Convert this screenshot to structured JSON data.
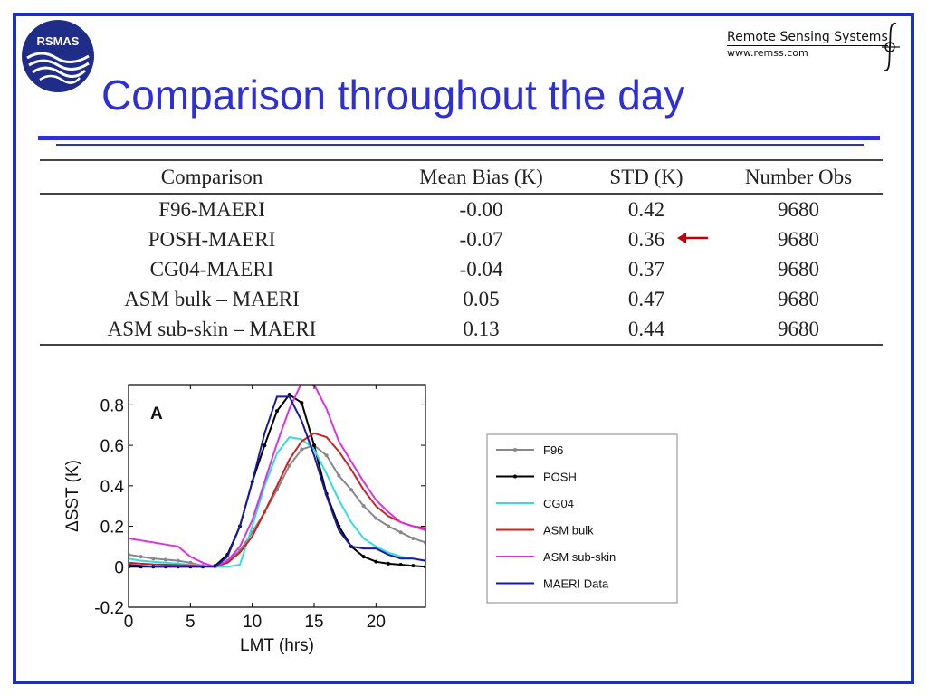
{
  "logo": {
    "text": "RSMAS",
    "icon": "rsmas-wave-logo"
  },
  "org": {
    "name": "Remote Sensing Systems",
    "url": "www.remss.com",
    "icon": "integral-mark-icon"
  },
  "title": "Comparison throughout the day",
  "table": {
    "headers": [
      "Comparison",
      "Mean Bias (K)",
      "STD (K)",
      "Number Obs"
    ],
    "rows": [
      [
        "F96-MAERI",
        "-0.00",
        "0.42",
        "9680"
      ],
      [
        "POSH-MAERI",
        "-0.07",
        "0.36",
        "9680"
      ],
      [
        "CG04-MAERI",
        "-0.04",
        "0.37",
        "9680"
      ],
      [
        "ASM bulk – MAERI",
        "0.05",
        "0.47",
        "9680"
      ],
      [
        "ASM sub-skin – MAERI",
        "0.13",
        "0.44",
        "9680"
      ]
    ],
    "highlight": {
      "row": 1,
      "icon": "left-arrow-icon",
      "color": "#c00000"
    }
  },
  "chart_data": {
    "type": "line",
    "panel_label": "A",
    "xlabel": "LMT (hrs)",
    "ylabel": "ΔSST (K)",
    "xlim": [
      0,
      24
    ],
    "ylim": [
      -0.2,
      0.9
    ],
    "xticks": [
      0,
      5,
      10,
      15,
      20
    ],
    "yticks": [
      -0.2,
      0,
      0.2,
      0.4,
      0.6,
      0.8
    ],
    "grid": false,
    "legend_position": "right-outside",
    "series": [
      {
        "name": "F96",
        "color": "#888888",
        "markers": true,
        "x": [
          0,
          1,
          2,
          3,
          4,
          5,
          6,
          7,
          8,
          9,
          10,
          11,
          12,
          13,
          14,
          15,
          16,
          17,
          18,
          19,
          20,
          21,
          22,
          23,
          24
        ],
        "y": [
          0.06,
          0.05,
          0.04,
          0.035,
          0.03,
          0.02,
          0.005,
          0.0,
          0.03,
          0.08,
          0.17,
          0.27,
          0.38,
          0.5,
          0.58,
          0.6,
          0.55,
          0.45,
          0.38,
          0.3,
          0.24,
          0.2,
          0.17,
          0.14,
          0.12
        ]
      },
      {
        "name": "POSH",
        "color": "#000000",
        "markers": true,
        "x": [
          0,
          1,
          2,
          3,
          4,
          5,
          6,
          7,
          8,
          9,
          10,
          11,
          12,
          13,
          14,
          15,
          16,
          17,
          18,
          19,
          20,
          21,
          22,
          23,
          24
        ],
        "y": [
          0.0,
          0.0,
          0.0,
          0.0,
          0.0,
          0.0,
          0.0,
          0.005,
          0.06,
          0.2,
          0.42,
          0.6,
          0.77,
          0.85,
          0.81,
          0.6,
          0.36,
          0.2,
          0.1,
          0.05,
          0.025,
          0.015,
          0.01,
          0.005,
          0.0
        ]
      },
      {
        "name": "CG04",
        "color": "#33dddd",
        "markers": false,
        "x": [
          0,
          1,
          2,
          3,
          4,
          5,
          6,
          7,
          8,
          9,
          10,
          11,
          12,
          13,
          14,
          15,
          16,
          17,
          18,
          19,
          20,
          21,
          22,
          23,
          24
        ],
        "y": [
          0.04,
          0.03,
          0.025,
          0.02,
          0.015,
          0.01,
          0.005,
          0.0,
          0.0,
          0.01,
          0.2,
          0.4,
          0.56,
          0.64,
          0.63,
          0.58,
          0.46,
          0.33,
          0.22,
          0.14,
          0.1,
          0.07,
          0.05,
          0.04,
          0.03
        ]
      },
      {
        "name": "ASM bulk",
        "color": "#cc2222",
        "markers": false,
        "x": [
          0,
          1,
          2,
          3,
          4,
          5,
          6,
          7,
          8,
          9,
          10,
          11,
          12,
          13,
          14,
          15,
          16,
          17,
          18,
          19,
          20,
          21,
          22,
          23,
          24
        ],
        "y": [
          0.02,
          0.015,
          0.012,
          0.01,
          0.008,
          0.006,
          0.003,
          0.0,
          0.02,
          0.07,
          0.15,
          0.27,
          0.4,
          0.53,
          0.62,
          0.66,
          0.64,
          0.57,
          0.48,
          0.38,
          0.3,
          0.25,
          0.22,
          0.2,
          0.19
        ]
      },
      {
        "name": "ASM sub-skin",
        "color": "#dd33dd",
        "markers": false,
        "x": [
          0,
          1,
          2,
          3,
          4,
          5,
          6,
          7,
          8,
          9,
          10,
          11,
          12,
          13,
          14,
          15,
          16,
          17,
          18,
          19,
          20,
          21,
          22,
          23,
          24
        ],
        "y": [
          0.14,
          0.13,
          0.12,
          0.11,
          0.1,
          0.05,
          0.02,
          0.0,
          0.03,
          0.1,
          0.23,
          0.42,
          0.61,
          0.78,
          0.91,
          0.9,
          0.78,
          0.62,
          0.52,
          0.42,
          0.33,
          0.27,
          0.22,
          0.2,
          0.18
        ]
      },
      {
        "name": "MAERI Data",
        "color": "#1a1aa0",
        "markers": false,
        "x": [
          0,
          1,
          2,
          3,
          4,
          5,
          6,
          7,
          8,
          9,
          10,
          11,
          12,
          13,
          14,
          15,
          16,
          17,
          18,
          19,
          20,
          21,
          22,
          23,
          24
        ],
        "y": [
          0.01,
          0.005,
          0.0,
          0.0,
          0.0,
          0.0,
          0.0,
          0.0,
          0.05,
          0.2,
          0.42,
          0.66,
          0.84,
          0.84,
          0.72,
          0.55,
          0.35,
          0.18,
          0.1,
          0.09,
          0.09,
          0.06,
          0.04,
          0.04,
          0.03
        ]
      }
    ]
  }
}
